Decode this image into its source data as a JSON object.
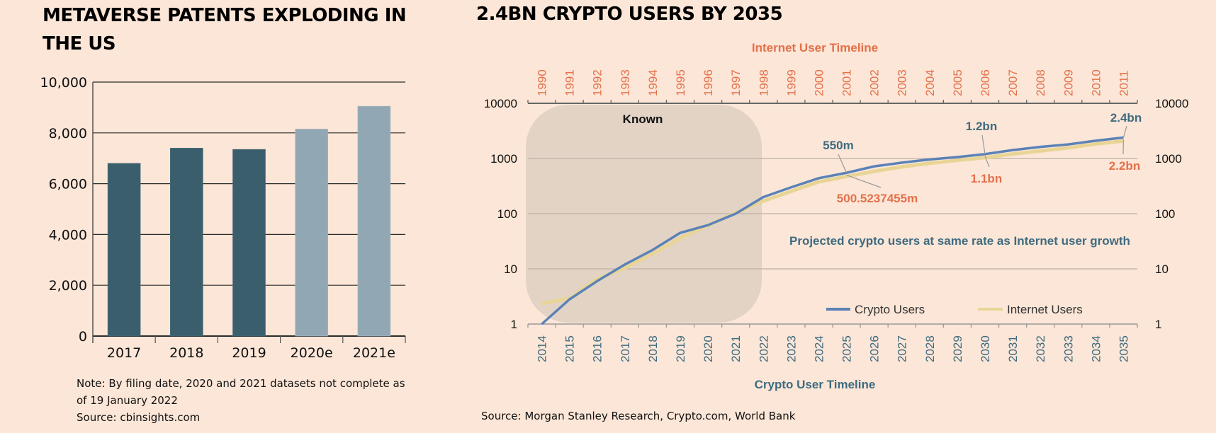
{
  "left_panel": {
    "title": "METAVERSE PATENTS EXPLODING IN THE US",
    "note": "Note: By filing date, 2020 and 2021 datasets not complete as of 19 January 2022",
    "source": "Source: cbinsights.com"
  },
  "right_panel": {
    "title": "2.4BN CRYPTO USERS BY 2035",
    "source": "Source: Morgan Stanley Research, Crypto.com, World Bank"
  },
  "colors": {
    "background": "#fce6d7",
    "bar_actual": "#3a5e6c",
    "bar_estimate": "#91a7b3",
    "crypto_line": "#5b82b8",
    "internet_line": "#e8d596",
    "orange_text": "#e4704a",
    "teal_text": "#3e6b80",
    "known_region": "#e0d0c3"
  },
  "chart_data": [
    {
      "type": "bar",
      "title": "METAVERSE PATENTS EXPLODING IN THE US",
      "categories": [
        "2017",
        "2018",
        "2019",
        "2020e",
        "2021e"
      ],
      "values": [
        6800,
        7400,
        7350,
        8150,
        9050
      ],
      "estimate": [
        false,
        false,
        false,
        true,
        true
      ],
      "ylim": [
        0,
        10000
      ],
      "yticks": [
        0,
        2000,
        4000,
        6000,
        8000,
        10000
      ],
      "ytick_labels": [
        "0",
        "2,000",
        "4,000",
        "6,000",
        "8,000",
        "10,000"
      ],
      "xlabel": "",
      "ylabel": "",
      "grid": true
    },
    {
      "type": "line",
      "title": "2.4BN CRYPTO USERS BY 2035",
      "yscale": "log",
      "ylim": [
        1,
        10000
      ],
      "yticks": [
        1,
        10,
        100,
        1000,
        10000
      ],
      "ytick_labels": [
        "1",
        "10",
        "100",
        "1000",
        "10000"
      ],
      "grid": true,
      "x_bottom": {
        "label": "Crypto User Timeline",
        "categories": [
          "2014",
          "2015",
          "2016",
          "2017",
          "2018",
          "2019",
          "2020",
          "2021",
          "2022",
          "2023",
          "2024",
          "2025",
          "2026",
          "2027",
          "2028",
          "2029",
          "2030",
          "2031",
          "2032",
          "2033",
          "2034",
          "2035"
        ]
      },
      "x_top": {
        "label": "Internet User Timeline",
        "categories": [
          "1990",
          "1991",
          "1992",
          "1993",
          "1994",
          "1995",
          "1996",
          "1997",
          "1998",
          "1999",
          "2000",
          "2001",
          "2002",
          "2003",
          "2004",
          "2005",
          "2006",
          "2007",
          "2008",
          "2009",
          "2010",
          "2011"
        ]
      },
      "series": [
        {
          "name": "Crypto Users",
          "values": [
            1,
            2.8,
            6,
            12,
            22,
            45,
            62,
            100,
            200,
            300,
            440,
            550,
            720,
            840,
            960,
            1060,
            1200,
            1420,
            1620,
            1800,
            2100,
            2400
          ]
        },
        {
          "name": "Internet Users",
          "values": [
            2.5,
            3.1,
            7,
            11,
            20,
            38,
            65,
            110,
            180,
            270,
            400,
            500.5237455,
            620,
            750,
            870,
            980,
            1100,
            1280,
            1450,
            1650,
            1950,
            2200
          ]
        }
      ],
      "legend": {
        "position": "bottom-right",
        "entries": [
          "Crypto Users",
          "Internet Users"
        ]
      },
      "shaded_region": {
        "label": "Known",
        "from": "2014",
        "to": "2021"
      },
      "annotations": [
        {
          "text": "550m",
          "series": "Crypto Users",
          "x": "2025",
          "color": "teal"
        },
        {
          "text": "500.5237455m",
          "series": "Internet Users",
          "x": "2025",
          "color": "orange"
        },
        {
          "text": "1.2bn",
          "series": "Crypto Users",
          "x": "2030",
          "color": "teal"
        },
        {
          "text": "1.1bn",
          "series": "Internet Users",
          "x": "2030",
          "color": "orange"
        },
        {
          "text": "2.4bn",
          "series": "Crypto Users",
          "x": "2035",
          "color": "teal"
        },
        {
          "text": "2.2bn",
          "series": "Internet Users",
          "x": "2035",
          "color": "orange"
        },
        {
          "text": "Projected crypto users at same rate as Internet user growth",
          "color": "teal"
        }
      ]
    }
  ]
}
